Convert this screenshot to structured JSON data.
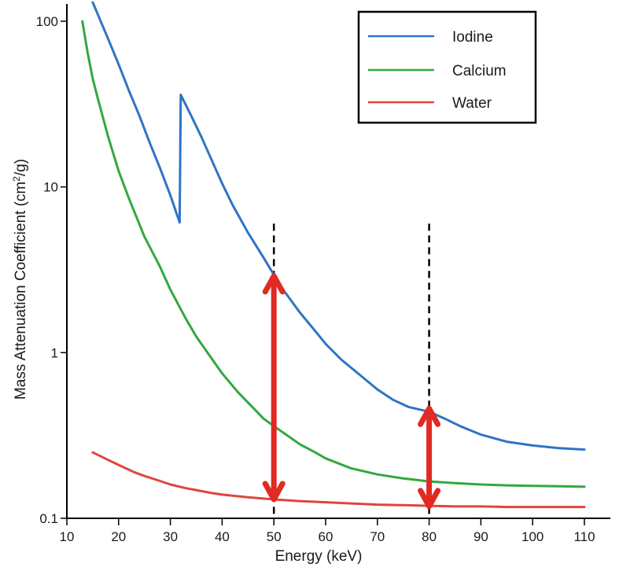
{
  "chart_data": {
    "type": "line",
    "title": "",
    "xlabel": "Energy (keV)",
    "ylabel_main": "Mass Attenuation Coefficient (cm",
    "ylabel_sup": "2",
    "ylabel_end": "/g)",
    "xlim": [
      10,
      120
    ],
    "ylim": [
      0.1,
      130
    ],
    "yscale": "log",
    "grid": false,
    "legend_position": "top-right",
    "x_ticks": [
      10,
      20,
      30,
      40,
      50,
      60,
      70,
      80,
      90,
      100,
      110
    ],
    "x_tick_labels": [
      "10",
      "20",
      "30",
      "40",
      "50",
      "60",
      "70",
      "80",
      "90",
      "100",
      "110"
    ],
    "y_ticks": [
      0.1,
      1,
      10,
      100
    ],
    "y_tick_labels": [
      "0.1",
      "1",
      "10",
      "100"
    ],
    "series": [
      {
        "name": "Iodine",
        "color": "#2e75c4",
        "x": [
          15,
          18,
          20,
          22,
          24,
          26,
          28,
          30,
          31.8,
          32.0,
          34,
          36,
          38,
          40,
          42,
          45,
          48,
          50,
          52,
          55,
          58,
          60,
          63,
          66,
          70,
          73,
          76,
          80,
          83,
          86,
          90,
          95,
          100,
          105,
          110
        ],
        "y": [
          130,
          78,
          55,
          38,
          27,
          18.5,
          13,
          8.9,
          6.1,
          36,
          27,
          20,
          14.5,
          10.5,
          7.8,
          5.3,
          3.75,
          2.95,
          2.35,
          1.75,
          1.35,
          1.13,
          0.91,
          0.76,
          0.6,
          0.52,
          0.47,
          0.44,
          0.4,
          0.36,
          0.32,
          0.29,
          0.275,
          0.265,
          0.26
        ]
      },
      {
        "name": "Calcium",
        "color": "#33a83f",
        "x": [
          13,
          14,
          15,
          16,
          18,
          20,
          22,
          25,
          28,
          30,
          33,
          35,
          38,
          40,
          43,
          45,
          48,
          50,
          53,
          55,
          58,
          60,
          65,
          70,
          75,
          80,
          85,
          90,
          95,
          100,
          105,
          110
        ],
        "y": [
          100,
          65,
          45,
          34,
          20,
          12.5,
          8.5,
          5,
          3.3,
          2.4,
          1.6,
          1.25,
          0.92,
          0.75,
          0.58,
          0.5,
          0.4,
          0.36,
          0.31,
          0.28,
          0.25,
          0.23,
          0.2,
          0.184,
          0.174,
          0.167,
          0.163,
          0.16,
          0.158,
          0.157,
          0.156,
          0.155
        ]
      },
      {
        "name": "Water",
        "color": "#e0453f",
        "x": [
          15,
          18,
          20,
          23,
          25,
          28,
          30,
          33,
          35,
          38,
          40,
          45,
          50,
          55,
          60,
          65,
          70,
          75,
          80,
          85,
          90,
          95,
          100,
          105,
          110
        ],
        "y": [
          0.25,
          0.225,
          0.21,
          0.19,
          0.18,
          0.168,
          0.16,
          0.152,
          0.148,
          0.142,
          0.139,
          0.134,
          0.13,
          0.127,
          0.125,
          0.123,
          0.121,
          0.12,
          0.119,
          0.118,
          0.118,
          0.117,
          0.117,
          0.117,
          0.117
        ]
      }
    ],
    "annotations": {
      "dashed_lines_x": [
        50,
        80
      ],
      "dashed_ymin": 0.1,
      "dashed_ymax": 6,
      "arrows": [
        {
          "x": 50,
          "y_top": 2.9,
          "y_bottom": 0.13,
          "color": "#e02a22"
        },
        {
          "x": 80,
          "y_top": 0.46,
          "y_bottom": 0.118,
          "color": "#e02a22"
        }
      ]
    }
  }
}
